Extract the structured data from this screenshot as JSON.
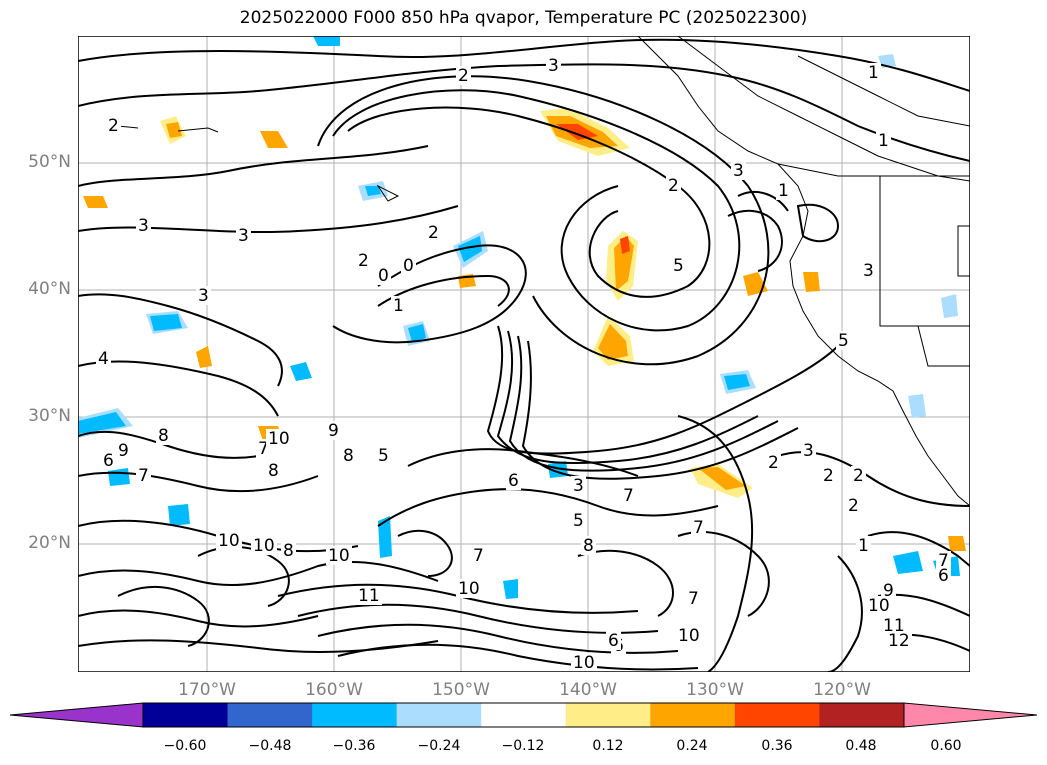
{
  "title": "2025022000 F000 850 hPa qvapor, Temperature PC (2025022300)",
  "lat_labels": [
    "50°N",
    "40°N",
    "30°N",
    "20°N"
  ],
  "lon_labels": [
    "170°W",
    "160°W",
    "150°W",
    "140°W",
    "130°W",
    "120°W"
  ],
  "colorbar": {
    "colors": [
      "#9933cc",
      "#000099",
      "#3366cc",
      "#00bbff",
      "#aaddff",
      "#ffffff",
      "#ffee88",
      "#ffa500",
      "#ff4500",
      "#b22222",
      "#ff88aa"
    ],
    "ticks": [
      "−0.60",
      "−0.48",
      "−0.36",
      "−0.24",
      "−0.12",
      "0.12",
      "0.24",
      "0.36",
      "0.48",
      "0.60"
    ]
  },
  "contour_labels": [
    {
      "text": "3"
    },
    {
      "text": "2"
    },
    {
      "text": "2"
    },
    {
      "text": "1"
    },
    {
      "text": "1"
    },
    {
      "text": "2"
    },
    {
      "text": "3"
    },
    {
      "text": "3"
    },
    {
      "text": "3"
    },
    {
      "text": "2"
    },
    {
      "text": "1"
    },
    {
      "text": "0"
    },
    {
      "text": "2"
    },
    {
      "text": "3"
    },
    {
      "text": "4"
    },
    {
      "text": "1"
    },
    {
      "text": "0"
    },
    {
      "text": "5"
    },
    {
      "text": "5"
    },
    {
      "text": "3"
    },
    {
      "text": "9"
    },
    {
      "text": "8"
    },
    {
      "text": "7"
    },
    {
      "text": "8"
    },
    {
      "text": "10"
    },
    {
      "text": "9"
    },
    {
      "text": "8"
    },
    {
      "text": "7"
    },
    {
      "text": "6"
    },
    {
      "text": "5"
    },
    {
      "text": "6"
    },
    {
      "text": "3"
    },
    {
      "text": "7"
    },
    {
      "text": "5"
    },
    {
      "text": "8"
    },
    {
      "text": "7"
    },
    {
      "text": "10"
    },
    {
      "text": "10"
    },
    {
      "text": "8"
    },
    {
      "text": "10"
    },
    {
      "text": "7"
    },
    {
      "text": "10"
    },
    {
      "text": "11"
    },
    {
      "text": "10"
    },
    {
      "text": "6"
    },
    {
      "text": "10"
    },
    {
      "text": "6"
    },
    {
      "text": "7"
    },
    {
      "text": "2"
    },
    {
      "text": "3"
    },
    {
      "text": "2"
    },
    {
      "text": "2"
    },
    {
      "text": "1"
    },
    {
      "text": "2"
    },
    {
      "text": "9"
    },
    {
      "text": "10"
    },
    {
      "text": "11"
    },
    {
      "text": "12"
    },
    {
      "text": "7"
    },
    {
      "text": "6"
    }
  ]
}
